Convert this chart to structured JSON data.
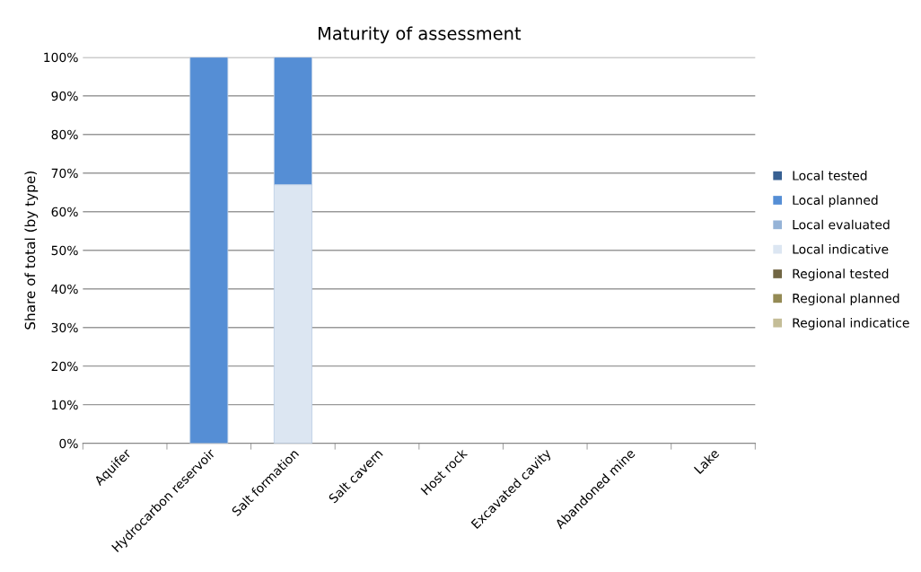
{
  "chart_data": {
    "type": "bar",
    "title": "Maturity of assessment",
    "ylabel": "Share of total (by type)",
    "categories": [
      "Aquifer",
      "Hydrocarbon reservoir",
      "Salt formation",
      "Salt cavern",
      "Host rock",
      "Excavated cavity",
      "Abandoned mine",
      "Lake"
    ],
    "stacked": true,
    "series": [
      {
        "name": "Regional indicatice",
        "color": "#c4bd97",
        "values": [
          null,
          null,
          null,
          null,
          null,
          null,
          null,
          null
        ]
      },
      {
        "name": "Regional planned",
        "color": "#948a54",
        "values": [
          null,
          null,
          null,
          null,
          null,
          null,
          null,
          null
        ]
      },
      {
        "name": "Regional tested",
        "color": "#716644",
        "values": [
          null,
          null,
          null,
          null,
          null,
          null,
          null,
          null
        ]
      },
      {
        "name": "Local indicative",
        "color": "#dce6f2",
        "values": [
          null,
          null,
          67,
          null,
          null,
          null,
          null,
          null
        ]
      },
      {
        "name": "Local evaluated",
        "color": "#95b3d7",
        "values": [
          null,
          null,
          null,
          null,
          null,
          null,
          null,
          null
        ]
      },
      {
        "name": "Local planned",
        "color": "#558ed5",
        "values": [
          null,
          100,
          33,
          null,
          null,
          null,
          null,
          null
        ]
      },
      {
        "name": "Local tested",
        "color": "#376092",
        "values": [
          null,
          null,
          null,
          null,
          null,
          null,
          null,
          null
        ]
      }
    ],
    "ylim": [
      0,
      100
    ],
    "yticks": [
      {
        "value": 0,
        "label": "0%"
      },
      {
        "value": 10,
        "label": "10%"
      },
      {
        "value": 20,
        "label": "20%"
      },
      {
        "value": 30,
        "label": "30%"
      },
      {
        "value": 40,
        "label": "40%"
      },
      {
        "value": 50,
        "label": "50%"
      },
      {
        "value": 60,
        "label": "60%"
      },
      {
        "value": 70,
        "label": "70%"
      },
      {
        "value": 80,
        "label": "80%"
      },
      {
        "value": 90,
        "label": "90%"
      },
      {
        "value": 100,
        "label": "100%"
      }
    ],
    "grid": "y",
    "legend": "right"
  }
}
